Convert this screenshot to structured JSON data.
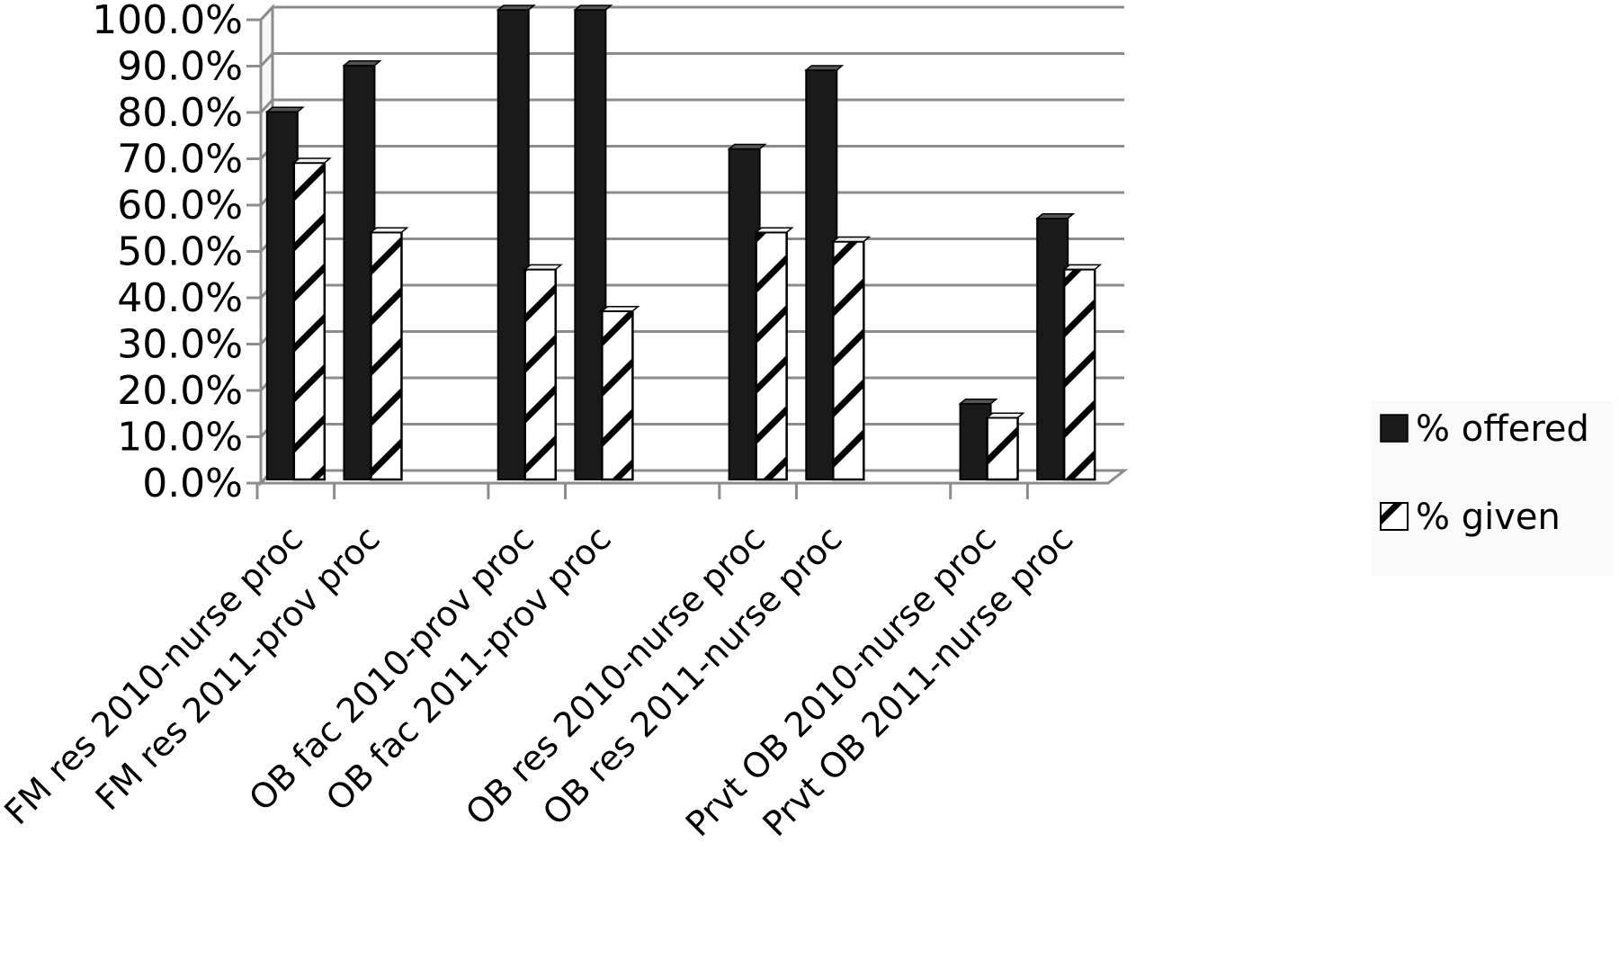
{
  "chart_data": {
    "type": "bar",
    "categories": [
      "FM res 2010-nurse proc",
      "FM res 2011-prov proc",
      "",
      "OB fac 2010-prov proc",
      "OB fac 2011-prov proc",
      "",
      "OB res 2010-nurse proc",
      "OB res 2011-nurse proc",
      "",
      "Prvt OB 2010-nurse proc",
      "Prvt OB 2011-nurse proc"
    ],
    "series": [
      {
        "name": "% offered",
        "values": [
          78,
          88,
          null,
          100,
          100,
          null,
          70,
          87,
          null,
          15,
          55
        ],
        "color": "#1a1a1a",
        "pattern": "solid"
      },
      {
        "name": "% given",
        "values": [
          67,
          52,
          null,
          44,
          35,
          null,
          52,
          50,
          null,
          12,
          44
        ],
        "color": "#ffffff",
        "pattern": "diagonal-hatch"
      }
    ],
    "yticks": [
      "0.0%",
      "10.0%",
      "20.0%",
      "30.0%",
      "40.0%",
      "50.0%",
      "60.0%",
      "70.0%",
      "80.0%",
      "90.0%",
      "100.0%"
    ],
    "ylim": [
      0,
      100
    ],
    "grid": true,
    "legend": "right",
    "title": "",
    "xlabel": "",
    "ylabel": ""
  }
}
